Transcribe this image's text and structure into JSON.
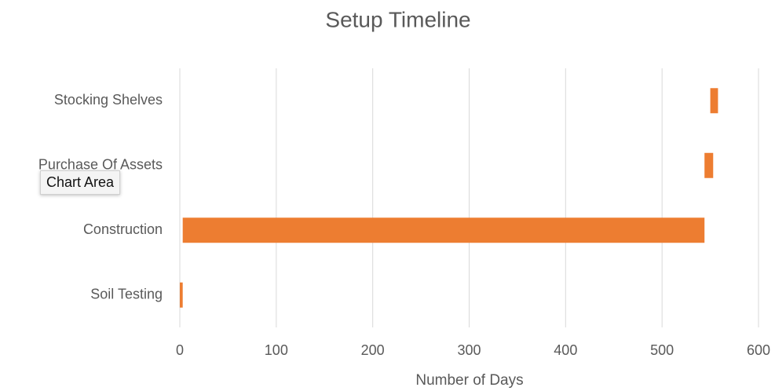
{
  "chart_data": {
    "type": "gantt_bar",
    "title": "Setup Timeline",
    "x_label": "Number of Days",
    "categories": [
      "Soil Testing",
      "Construction",
      "Purchase Of Assets",
      "Stocking Shelves"
    ],
    "series": [
      {
        "color": "none",
        "values": [
          0,
          3,
          544,
          550
        ]
      },
      {
        "color": "#ed7d31",
        "values": [
          3,
          541,
          9,
          8
        ]
      }
    ],
    "xlim": [
      0,
      600
    ],
    "xticks": [
      0,
      100,
      200,
      300,
      400,
      500,
      600
    ],
    "grid": true,
    "tooltip": "Chart Area"
  }
}
